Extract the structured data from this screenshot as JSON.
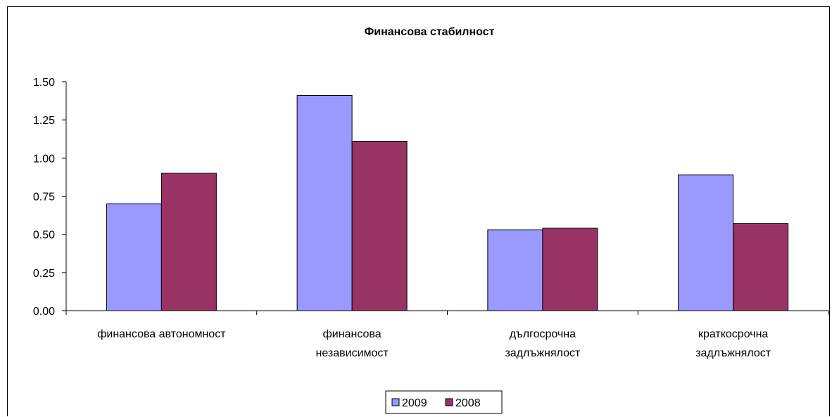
{
  "chart_data": {
    "type": "bar",
    "title": "Финансова стабилност",
    "xlabel": "",
    "ylabel": "",
    "ylim": [
      0,
      1.5
    ],
    "yticks": [
      "0.00",
      "0.25",
      "0.50",
      "0.75",
      "1.00",
      "1.25",
      "1.50"
    ],
    "ytick_values": [
      0,
      0.25,
      0.5,
      0.75,
      1.0,
      1.25,
      1.5
    ],
    "categories": [
      [
        "финансова автономност"
      ],
      [
        "финансова",
        "независимост"
      ],
      [
        "дългосрочна",
        "задлъжнялост"
      ],
      [
        "краткосрочна",
        "задлъжнялост"
      ]
    ],
    "series": [
      {
        "name": "2009",
        "color": "#9999ff",
        "values": [
          0.7,
          1.41,
          0.53,
          0.89
        ]
      },
      {
        "name": "2008",
        "color": "#993366",
        "values": [
          0.9,
          1.11,
          0.54,
          0.57
        ]
      }
    ],
    "grid": false,
    "legend_position": "bottom"
  }
}
